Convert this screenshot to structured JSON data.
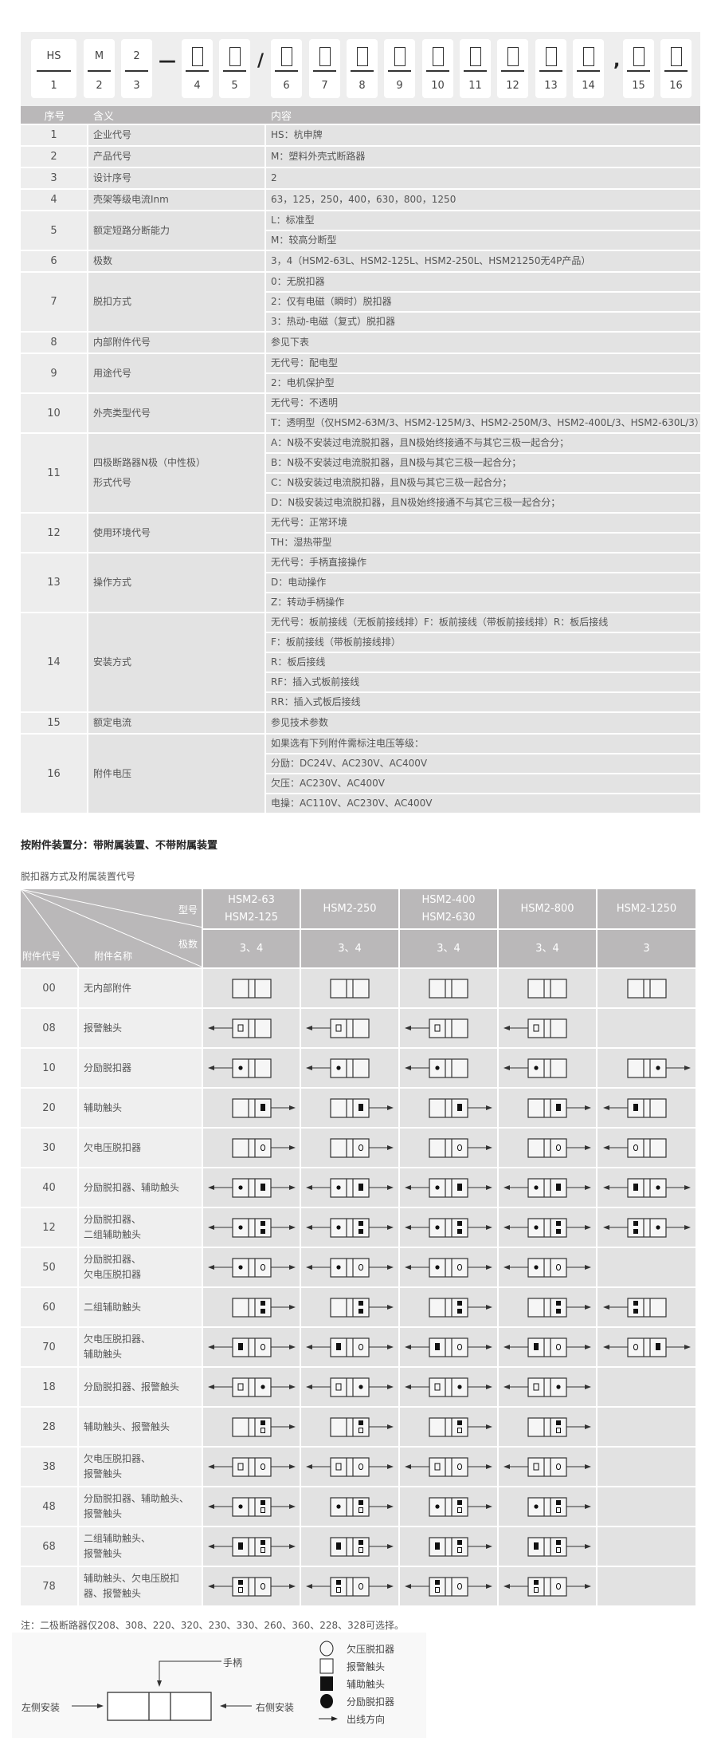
{
  "code_panel": {
    "segments": [
      {
        "type": "box",
        "top": "HS",
        "num": "1"
      },
      {
        "type": "box",
        "top": "M",
        "num": "2"
      },
      {
        "type": "box",
        "top": "2",
        "num": "3"
      },
      {
        "type": "sep",
        "text": "—"
      },
      {
        "type": "box",
        "placeholder": true,
        "num": "4"
      },
      {
        "type": "box",
        "placeholder": true,
        "num": "5"
      },
      {
        "type": "sep",
        "text": "/"
      },
      {
        "type": "box",
        "placeholder": true,
        "num": "6"
      },
      {
        "type": "box",
        "placeholder": true,
        "num": "7"
      },
      {
        "type": "box",
        "placeholder": true,
        "num": "8"
      },
      {
        "type": "box",
        "placeholder": true,
        "num": "9"
      },
      {
        "type": "box",
        "placeholder": true,
        "num": "10"
      },
      {
        "type": "box",
        "placeholder": true,
        "num": "11"
      },
      {
        "type": "box",
        "placeholder": true,
        "num": "12"
      },
      {
        "type": "box",
        "placeholder": true,
        "num": "13"
      },
      {
        "type": "box",
        "placeholder": true,
        "num": "14"
      },
      {
        "type": "sep",
        "text": ","
      },
      {
        "type": "box",
        "placeholder": true,
        "num": "15"
      },
      {
        "type": "box",
        "placeholder": true,
        "num": "16"
      }
    ]
  },
  "spec_table": {
    "headers": [
      "序号",
      "含义",
      "内容"
    ],
    "rows": [
      {
        "no": "1",
        "meaning": "企业代号",
        "content": [
          "HS：杭申牌"
        ]
      },
      {
        "no": "2",
        "meaning": "产品代号",
        "content": [
          "M：塑料外壳式断路器"
        ]
      },
      {
        "no": "3",
        "meaning": "设计序号",
        "content": [
          "2"
        ]
      },
      {
        "no": "4",
        "meaning": "壳架等级电流Inm",
        "content": [
          "63，125，250，400，630，800，1250"
        ]
      },
      {
        "no": "5",
        "meaning": "额定短路分断能力",
        "content": [
          "L：标准型",
          "M：较高分断型"
        ]
      },
      {
        "no": "6",
        "meaning": "极数",
        "content": [
          "3，4（HSM2-63L、HSM2-125L、HSM2-250L、HSM21250无4P产品）"
        ]
      },
      {
        "no": "7",
        "meaning": "脱扣方式",
        "content": [
          "0：无脱扣器",
          "2：仅有电磁（瞬时）脱扣器",
          "3：热动-电磁（复式）脱扣器"
        ]
      },
      {
        "no": "8",
        "meaning": "内部附件代号",
        "content": [
          "参见下表"
        ]
      },
      {
        "no": "9",
        "meaning": "用途代号",
        "content": [
          "无代号：配电型",
          "2：电机保护型"
        ]
      },
      {
        "no": "10",
        "meaning": "外壳类型代号",
        "content": [
          "无代号：不透明",
          "T：透明型（仅HSM2-63M/3、HSM2-125M/3、HSM2-250M/3、HSM2-400L/3、HSM2-630L/3）"
        ]
      },
      {
        "no": "11",
        "meaning": "四极断路器N极（中性极）\n形式代号",
        "content": [
          "A：N极不安装过电流脱扣器，且N极始终接通不与其它三极一起合分；",
          "B：N极不安装过电流脱扣器，且N极与其它三极一起合分；",
          "C：N极安装过电流脱扣器，且N极与其它三极一起合分；",
          "D：N极安装过电流脱扣器，且N极始终接通不与其它三极一起合分；"
        ]
      },
      {
        "no": "12",
        "meaning": "使用环境代号",
        "content": [
          "无代号：正常环境",
          "TH：湿热带型"
        ]
      },
      {
        "no": "13",
        "meaning": "操作方式",
        "content": [
          "无代号：手柄直接操作",
          "D：电动操作",
          "Z：转动手柄操作"
        ]
      },
      {
        "no": "14",
        "meaning": "安装方式",
        "content": [
          "无代号：板前接线（无板前接线排）F：板前接线（带板前接线排）R：板后接线",
          "F：板前接线（带板前接线排）",
          "R：板后接线",
          "RF：插入式板前接线",
          "RR：插入式板后接线"
        ]
      },
      {
        "no": "15",
        "meaning": "额定电流",
        "content": [
          "参见技术参数"
        ]
      },
      {
        "no": "16",
        "meaning": "附件电压",
        "content": [
          "如果选有下列附件需标注电压等级：",
          "分励：DC24V、AC230V、AC400V",
          "欠压：AC230V、AC400V",
          "电操：AC110V、AC230V、AC400V"
        ]
      }
    ]
  },
  "bold_note": "按附件装置分：带附属装置、不带附属装置",
  "accessory_title": "脱扣器方式及附属装置代号",
  "accessory_table": {
    "corner": {
      "model": "型号",
      "poles": "极数",
      "code": "附件代号",
      "name": "附件名称"
    },
    "models": [
      "HSM2-63\nHSM2-125",
      "HSM2-250",
      "HSM2-400\nHSM2-630",
      "HSM2-800",
      "HSM2-1250"
    ],
    "poles": [
      "3、4",
      "3、4",
      "3、4",
      "3、4",
      "3"
    ],
    "symbol_key": {
      "A": "报警触头",
      "S": "分励脱扣器",
      "X": "辅助触头",
      "U": "欠压脱扣器",
      "arrow": "出线方向"
    },
    "rows": [
      {
        "code": "00",
        "name": "无内部附件",
        "cells": [
          {
            "l": "",
            "r": "",
            "a": ""
          },
          {
            "l": "",
            "r": "",
            "a": ""
          },
          {
            "l": "",
            "r": "",
            "a": ""
          },
          {
            "l": "",
            "r": "",
            "a": ""
          },
          {
            "l": "",
            "r": "",
            "a": ""
          }
        ]
      },
      {
        "code": "08",
        "name": "报警触头",
        "cells": [
          {
            "l": "A",
            "r": "",
            "a": "l"
          },
          {
            "l": "A",
            "r": "",
            "a": "l"
          },
          {
            "l": "A",
            "r": "",
            "a": "l"
          },
          {
            "l": "A",
            "r": "",
            "a": "l"
          },
          null
        ]
      },
      {
        "code": "10",
        "name": "分励脱扣器",
        "cells": [
          {
            "l": "S",
            "r": "",
            "a": "l"
          },
          {
            "l": "S",
            "r": "",
            "a": "l"
          },
          {
            "l": "S",
            "r": "",
            "a": "l"
          },
          {
            "l": "S",
            "r": "",
            "a": "l"
          },
          {
            "l": "",
            "r": "S",
            "a": "r"
          }
        ]
      },
      {
        "code": "20",
        "name": "辅助触头",
        "cells": [
          {
            "l": "",
            "r": "X",
            "a": "r"
          },
          {
            "l": "",
            "r": "X",
            "a": "r"
          },
          {
            "l": "",
            "r": "X",
            "a": "r"
          },
          {
            "l": "",
            "r": "X",
            "a": "r"
          },
          {
            "l": "X",
            "r": "",
            "a": "l"
          }
        ]
      },
      {
        "code": "30",
        "name": "欠电压脱扣器",
        "cells": [
          {
            "l": "",
            "r": "U",
            "a": "r"
          },
          {
            "l": "",
            "r": "U",
            "a": "r"
          },
          {
            "l": "",
            "r": "U",
            "a": "r"
          },
          {
            "l": "",
            "r": "U",
            "a": "r"
          },
          {
            "l": "U",
            "r": "",
            "a": "l"
          }
        ]
      },
      {
        "code": "40",
        "name": "分励脱扣器、辅助触头",
        "cells": [
          {
            "l": "S",
            "r": "X",
            "a": "lr"
          },
          {
            "l": "S",
            "r": "X",
            "a": "lr"
          },
          {
            "l": "S",
            "r": "X",
            "a": "lr"
          },
          {
            "l": "S",
            "r": "X",
            "a": "lr"
          },
          {
            "l": "X",
            "r": "S",
            "a": "lr"
          }
        ]
      },
      {
        "code": "12",
        "name": "分励脱扣器、\n二组辅助触头",
        "cells": [
          {
            "l": "S",
            "r": "XX",
            "a": "lr"
          },
          {
            "l": "S",
            "r": "XX",
            "a": "lr"
          },
          {
            "l": "S",
            "r": "XX",
            "a": "lr"
          },
          {
            "l": "S",
            "r": "XX",
            "a": "lr"
          },
          {
            "l": "XX",
            "r": "S",
            "a": "lr"
          }
        ]
      },
      {
        "code": "50",
        "name": "分励脱扣器、\n欠电压脱扣器",
        "cells": [
          {
            "l": "S",
            "r": "U",
            "a": "lr"
          },
          {
            "l": "S",
            "r": "U",
            "a": "lr"
          },
          {
            "l": "S",
            "r": "U",
            "a": "lr"
          },
          {
            "l": "S",
            "r": "U",
            "a": "lr"
          },
          null
        ]
      },
      {
        "code": "60",
        "name": "二组辅助触头",
        "cells": [
          {
            "l": "",
            "r": "XX",
            "a": "r"
          },
          {
            "l": "",
            "r": "XX",
            "a": "r"
          },
          {
            "l": "",
            "r": "XX",
            "a": "r"
          },
          {
            "l": "",
            "r": "XX",
            "a": "r"
          },
          {
            "l": "XX",
            "r": "",
            "a": "l"
          }
        ]
      },
      {
        "code": "70",
        "name": "欠电压脱扣器、\n辅助触头",
        "cells": [
          {
            "l": "X",
            "r": "U",
            "a": "lr"
          },
          {
            "l": "X",
            "r": "U",
            "a": "lr"
          },
          {
            "l": "X",
            "r": "U",
            "a": "lr"
          },
          {
            "l": "X",
            "r": "U",
            "a": "lr"
          },
          {
            "l": "U",
            "r": "X",
            "a": "lr"
          }
        ]
      },
      {
        "code": "18",
        "name": "分励脱扣器、报警触头",
        "cells": [
          {
            "l": "A",
            "r": "S",
            "a": "lr"
          },
          {
            "l": "A",
            "r": "S",
            "a": "lr"
          },
          {
            "l": "A",
            "r": "S",
            "a": "lr"
          },
          {
            "l": "A",
            "r": "S",
            "a": "lr"
          },
          null
        ]
      },
      {
        "code": "28",
        "name": "辅助触头、报警触头",
        "cells": [
          {
            "l": "",
            "r": "XA",
            "a": "r"
          },
          {
            "l": "",
            "r": "XA",
            "a": "r"
          },
          {
            "l": "",
            "r": "XA",
            "a": "r"
          },
          {
            "l": "",
            "r": "XA",
            "a": "r"
          },
          null
        ]
      },
      {
        "code": "38",
        "name": "欠电压脱扣器、\n报警触头",
        "cells": [
          {
            "l": "A",
            "r": "U",
            "a": "lr"
          },
          {
            "l": "A",
            "r": "U",
            "a": "lr"
          },
          {
            "l": "A",
            "r": "U",
            "a": "lr"
          },
          {
            "l": "A",
            "r": "U",
            "a": "lr"
          },
          null
        ]
      },
      {
        "code": "48",
        "name": "分励脱扣器、辅助触头、\n报警触头",
        "cells": [
          {
            "l": "S",
            "r": "XA",
            "a": "lr"
          },
          {
            "l": "S",
            "r": "XA",
            "a": "r"
          },
          {
            "l": "S",
            "r": "XA",
            "a": "r"
          },
          {
            "l": "S",
            "r": "XA",
            "a": "r"
          },
          null
        ]
      },
      {
        "code": "68",
        "name": "二组辅助触头、\n报警触头",
        "cells": [
          {
            "l": "X",
            "r": "XA",
            "a": "lr"
          },
          {
            "l": "X",
            "r": "XA",
            "a": "r"
          },
          {
            "l": "X",
            "r": "XA",
            "a": "r"
          },
          {
            "l": "X",
            "r": "XA",
            "a": "r"
          },
          null
        ]
      },
      {
        "code": "78",
        "name": "辅助触头、欠电压脱扣\n器、报警触头",
        "cells": [
          {
            "l": "XA",
            "r": "U",
            "a": "lr"
          },
          {
            "l": "XA",
            "r": "U",
            "a": "lr"
          },
          {
            "l": "XA",
            "r": "U",
            "a": "lr"
          },
          {
            "l": "XA",
            "r": "U",
            "a": "lr"
          },
          null
        ]
      }
    ]
  },
  "note": "注：二极断路器仅208、308、220、320、230、330、260、360、228、328可选择。",
  "diagram": {
    "handle": "手柄",
    "left_mount": "左侧安装",
    "right_mount": "右侧安装",
    "legend": [
      {
        "symbol": "U",
        "label": "欠压脱扣器"
      },
      {
        "symbol": "A",
        "label": "报警触头"
      },
      {
        "symbol": "X",
        "label": "辅助触头"
      },
      {
        "symbol": "S",
        "label": "分励脱扣器"
      },
      {
        "symbol": "arrow",
        "label": "出线方向"
      }
    ]
  }
}
